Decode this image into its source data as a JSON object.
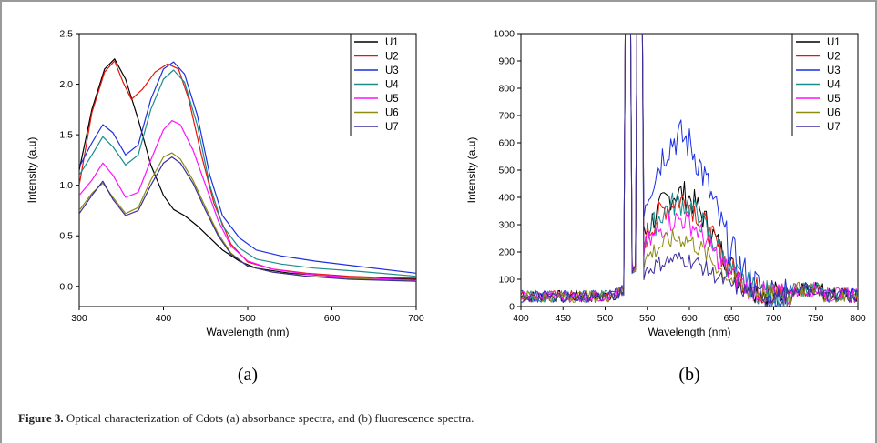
{
  "figure": {
    "caption_label": "Figure 3.",
    "caption_text": " Optical characterization of Cdots (a) absorbance spectra, and (b) fluorescence spectra."
  },
  "chart_data": [
    {
      "type": "line",
      "panel_label": "(a)",
      "xlabel": "Wavelength (nm)",
      "ylabel": "Intensity (a.u)",
      "xlim": [
        300,
        700
      ],
      "ylim": [
        -0.2,
        2.5
      ],
      "x_ticks": [
        300,
        400,
        500,
        600,
        700
      ],
      "y_ticks": [
        0.0,
        0.5,
        1.0,
        1.5,
        2.0,
        2.5
      ],
      "y_tick_labels": [
        "0,0",
        "0,5",
        "1,0",
        "1,5",
        "2,0",
        "2,5"
      ],
      "grid": false,
      "legend": "top-right",
      "series": [
        {
          "name": "U1",
          "color": "#000000",
          "x": [
            300,
            315,
            330,
            342,
            355,
            370,
            385,
            400,
            412,
            425,
            440,
            455,
            470,
            490,
            510,
            550,
            600,
            650,
            700
          ],
          "y": [
            1.15,
            1.75,
            2.15,
            2.25,
            2.05,
            1.65,
            1.2,
            0.9,
            0.76,
            0.7,
            0.6,
            0.48,
            0.36,
            0.25,
            0.18,
            0.13,
            0.1,
            0.08,
            0.07
          ]
        },
        {
          "name": "U2",
          "color": "#e8140a",
          "x": [
            300,
            315,
            330,
            342,
            352,
            362,
            375,
            390,
            405,
            418,
            430,
            445,
            460,
            480,
            500,
            530,
            570,
            620,
            670,
            700
          ],
          "y": [
            1.0,
            1.72,
            2.12,
            2.23,
            2.02,
            1.85,
            1.95,
            2.12,
            2.2,
            2.15,
            1.85,
            1.3,
            0.82,
            0.42,
            0.24,
            0.17,
            0.13,
            0.1,
            0.085,
            0.08
          ]
        },
        {
          "name": "U3",
          "color": "#1c2fe0",
          "x": [
            300,
            315,
            328,
            340,
            355,
            370,
            385,
            400,
            412,
            425,
            440,
            455,
            470,
            490,
            510,
            540,
            580,
            630,
            700
          ],
          "y": [
            1.18,
            1.42,
            1.6,
            1.52,
            1.3,
            1.4,
            1.85,
            2.15,
            2.22,
            2.1,
            1.7,
            1.1,
            0.7,
            0.48,
            0.36,
            0.3,
            0.25,
            0.2,
            0.13
          ]
        },
        {
          "name": "U4",
          "color": "#1a8c8c",
          "x": [
            300,
            315,
            328,
            340,
            355,
            370,
            385,
            400,
            412,
            425,
            440,
            455,
            470,
            490,
            510,
            540,
            580,
            630,
            700
          ],
          "y": [
            1.1,
            1.3,
            1.48,
            1.38,
            1.2,
            1.3,
            1.75,
            2.05,
            2.14,
            2.02,
            1.6,
            1.0,
            0.6,
            0.38,
            0.27,
            0.22,
            0.18,
            0.15,
            0.1
          ]
        },
        {
          "name": "U5",
          "color": "#ff10ff",
          "x": [
            300,
            315,
            328,
            340,
            355,
            370,
            385,
            400,
            410,
            420,
            435,
            450,
            465,
            480,
            500,
            530,
            570,
            620,
            700
          ],
          "y": [
            0.9,
            1.05,
            1.22,
            1.1,
            0.88,
            0.93,
            1.25,
            1.55,
            1.64,
            1.6,
            1.35,
            1.0,
            0.65,
            0.4,
            0.25,
            0.17,
            0.12,
            0.09,
            0.06
          ]
        },
        {
          "name": "U6",
          "color": "#8f8a10",
          "x": [
            300,
            315,
            328,
            340,
            355,
            370,
            385,
            400,
            410,
            420,
            435,
            450,
            465,
            480,
            500,
            530,
            570,
            620,
            700
          ],
          "y": [
            0.75,
            0.92,
            1.02,
            0.88,
            0.72,
            0.78,
            1.05,
            1.28,
            1.32,
            1.26,
            1.05,
            0.78,
            0.52,
            0.33,
            0.2,
            0.14,
            0.1,
            0.08,
            0.05
          ]
        },
        {
          "name": "U7",
          "color": "#3b2d9c",
          "x": [
            300,
            315,
            328,
            340,
            355,
            370,
            385,
            400,
            410,
            420,
            435,
            450,
            465,
            480,
            500,
            530,
            570,
            620,
            700
          ],
          "y": [
            0.72,
            0.9,
            1.04,
            0.86,
            0.7,
            0.75,
            1.0,
            1.22,
            1.28,
            1.22,
            1.02,
            0.75,
            0.5,
            0.32,
            0.2,
            0.14,
            0.1,
            0.07,
            0.05
          ]
        }
      ]
    },
    {
      "type": "line",
      "panel_label": "(b)",
      "xlabel": "Wavelength (nm)",
      "ylabel": "Intensity (a.u)",
      "xlim": [
        400,
        800
      ],
      "ylim": [
        0,
        1000
      ],
      "x_ticks": [
        400,
        450,
        500,
        550,
        600,
        650,
        700,
        750,
        800
      ],
      "y_ticks": [
        0,
        100,
        200,
        300,
        400,
        500,
        600,
        700,
        800,
        900,
        1000
      ],
      "grid": false,
      "legend": "top-right",
      "series": [
        {
          "name": "U1",
          "color": "#000000",
          "peak": 415
        },
        {
          "name": "U2",
          "color": "#e8140a",
          "peak": 390
        },
        {
          "name": "U3",
          "color": "#1c2fe0",
          "peak": 620
        },
        {
          "name": "U4",
          "color": "#1a8c8c",
          "peak": 380
        },
        {
          "name": "U5",
          "color": "#ff10ff",
          "peak": 320
        },
        {
          "name": "U6",
          "color": "#8f8a10",
          "peak": 250
        },
        {
          "name": "U7",
          "color": "#3b2d9c",
          "peak": 175
        }
      ]
    }
  ]
}
